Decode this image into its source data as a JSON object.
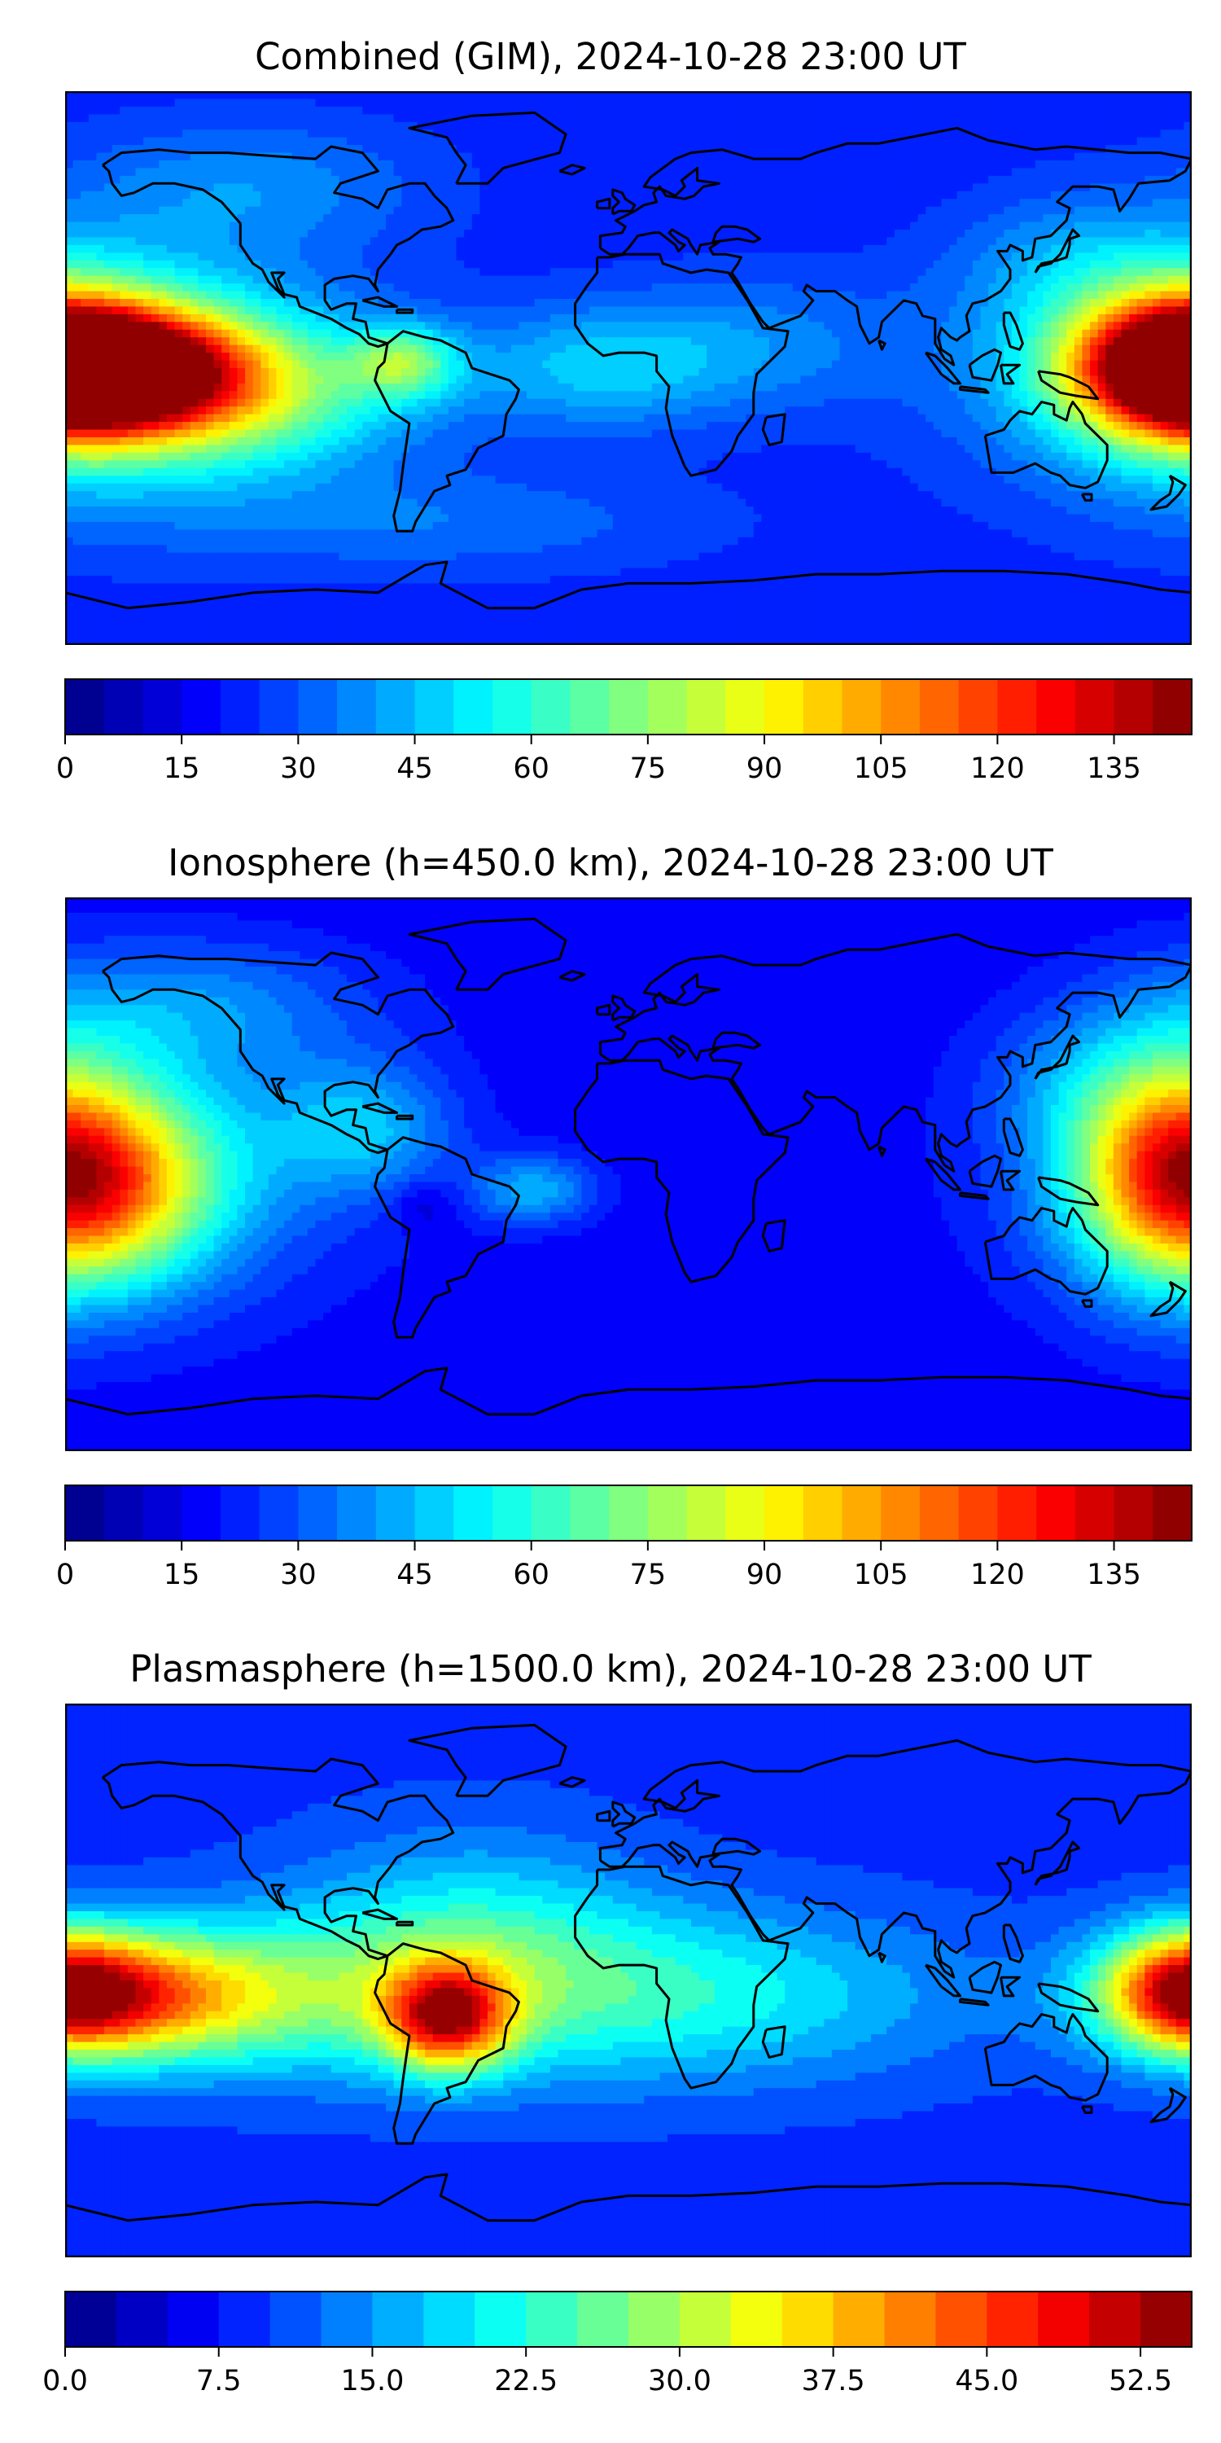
{
  "panels": [
    {
      "title": "Combined (GIM), 2024-10-28 23:00 UT",
      "colorbar": {
        "min": 0,
        "max": 145,
        "levels": 29,
        "cmap": "jet",
        "tick_values": [
          0,
          15,
          30,
          45,
          60,
          75,
          90,
          105,
          120,
          135
        ],
        "tick_labels": [
          "0",
          "15",
          "30",
          "45",
          "60",
          "75",
          "90",
          "105",
          "120",
          "135"
        ]
      },
      "field": {
        "background": 22,
        "blobs": [
          {
            "lon": -170,
            "lat": 0,
            "amp": 118,
            "slon": 28,
            "slat": 13
          },
          {
            "lon": -170,
            "lat": 0,
            "amp": 45,
            "slon": 50,
            "slat": 28
          },
          {
            "lon": -130,
            "lat": -8,
            "amp": 42,
            "slon": 40,
            "slat": 16
          },
          {
            "lon": 175,
            "lat": 2,
            "amp": 55,
            "slon": 22,
            "slat": 18
          },
          {
            "lon": -72,
            "lat": 2,
            "amp": 38,
            "slon": 12,
            "slat": 8
          },
          {
            "lon": -10,
            "lat": 0,
            "amp": 22,
            "slon": 30,
            "slat": 14
          },
          {
            "lon": 40,
            "lat": 8,
            "amp": 14,
            "slon": 35,
            "slat": 16
          },
          {
            "lon": 140,
            "lat": 35,
            "amp": 12,
            "slon": 25,
            "slat": 15
          },
          {
            "lon": -60,
            "lat": -50,
            "amp": 12,
            "slon": 60,
            "slat": 12
          },
          {
            "lon": -120,
            "lat": 60,
            "amp": 15,
            "slon": 40,
            "slat": 15
          }
        ]
      }
    },
    {
      "title": "Ionosphere  (h=450.0 km), 2024-10-28 23:00 UT",
      "colorbar": {
        "min": 0,
        "max": 145,
        "levels": 29,
        "cmap": "jet",
        "tick_values": [
          0,
          15,
          30,
          45,
          60,
          75,
          90,
          105,
          120,
          135
        ],
        "tick_labels": [
          "0",
          "15",
          "30",
          "45",
          "60",
          "75",
          "90",
          "105",
          "120",
          "135"
        ]
      },
      "field": {
        "background": 16,
        "blobs": [
          {
            "lon": -170,
            "lat": -3,
            "amp": 72,
            "slon": 28,
            "slat": 22
          },
          {
            "lon": -160,
            "lat": 5,
            "amp": 20,
            "slon": 55,
            "slat": 35
          },
          {
            "lon": 172,
            "lat": 5,
            "amp": 48,
            "slon": 22,
            "slat": 28
          },
          {
            "lon": -85,
            "lat": 15,
            "amp": 25,
            "slon": 20,
            "slat": 15
          },
          {
            "lon": -30,
            "lat": -5,
            "amp": 26,
            "slon": 14,
            "slat": 8
          },
          {
            "lon": -65,
            "lat": -10,
            "amp": -10,
            "slon": 8,
            "slat": 6
          },
          {
            "lon": -140,
            "lat": 55,
            "amp": 18,
            "slon": 40,
            "slat": 15
          },
          {
            "lon": 140,
            "lat": 30,
            "amp": 10,
            "slon": 20,
            "slat": 15
          }
        ]
      }
    },
    {
      "title": "Plasmasphere (h=1500.0 km), 2024-10-28 23:00 UT",
      "colorbar": {
        "min": 0,
        "max": 55,
        "levels": 22,
        "cmap": "jet",
        "tick_values": [
          0,
          7.5,
          15,
          22.5,
          30,
          37.5,
          45,
          52.5
        ],
        "tick_labels": [
          "0.0",
          "7.5",
          "15.0",
          "22.5",
          "30.0",
          "37.5",
          "45.0",
          "52.5"
        ]
      },
      "field": {
        "background": 9,
        "blobs": [
          {
            "lon": -58,
            "lat": -12,
            "amp": 32,
            "slon": 14,
            "slat": 12
          },
          {
            "lon": -165,
            "lat": -5,
            "amp": 26,
            "slon": 30,
            "slat": 14
          },
          {
            "lon": -120,
            "lat": -5,
            "amp": 14,
            "slon": 40,
            "slat": 18
          },
          {
            "lon": 20,
            "lat": -5,
            "amp": 12,
            "slon": 60,
            "slat": 20
          },
          {
            "lon": 178,
            "lat": -3,
            "amp": 24,
            "slon": 18,
            "slat": 14
          },
          {
            "lon": -50,
            "lat": 10,
            "amp": 12,
            "slon": 40,
            "slat": 25
          }
        ]
      }
    }
  ]
}
